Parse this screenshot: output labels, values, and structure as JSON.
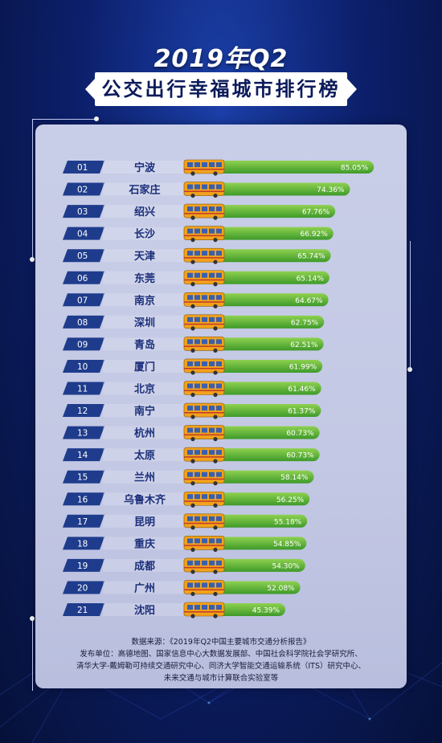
{
  "title": "2019年Q2",
  "subtitle": "公交出行幸福城市排行榜",
  "colors": {
    "rank_badge": "#1f3c8c",
    "bar_green_light": "#8fd14f",
    "bar_green_dark": "#3e9a2a",
    "bus_orange": "#f2a21b",
    "panel": "#c6cbe6"
  },
  "chart_data": {
    "type": "bar",
    "orientation": "horizontal",
    "ranks": [
      "01",
      "02",
      "03",
      "04",
      "05",
      "06",
      "07",
      "08",
      "09",
      "10",
      "11",
      "12",
      "13",
      "14",
      "15",
      "16",
      "17",
      "18",
      "19",
      "20",
      "21"
    ],
    "categories": [
      "宁波",
      "石家庄",
      "绍兴",
      "长沙",
      "天津",
      "东莞",
      "南京",
      "深圳",
      "青岛",
      "厦门",
      "北京",
      "南宁",
      "杭州",
      "太原",
      "兰州",
      "乌鲁木齐",
      "昆明",
      "重庆",
      "成都",
      "广州",
      "沈阳"
    ],
    "values": [
      85.05,
      74.36,
      67.76,
      66.92,
      65.74,
      65.14,
      64.67,
      62.75,
      62.51,
      61.99,
      61.46,
      61.37,
      60.73,
      60.73,
      58.14,
      56.25,
      55.18,
      54.85,
      54.3,
      52.08,
      45.39
    ],
    "labels": [
      "85.05%",
      "74.36%",
      "67.76%",
      "66.92%",
      "65.74%",
      "65.14%",
      "64.67%",
      "62.75%",
      "62.51%",
      "61.99%",
      "61.46%",
      "61.37%",
      "60.73%",
      "60.73%",
      "58.14%",
      "56.25%",
      "55.18%",
      "54.85%",
      "54.30%",
      "52.08%",
      "45.39%"
    ],
    "icon": "bus-icon"
  },
  "source": {
    "line1": "数据来源：《2019年Q2中国主要城市交通分析报告》",
    "line2": "发布单位：高德地图、国家信息中心大数据发展部、中国社会科学院社会学研究所、",
    "line3": "清华大学-戴姆勒可持续交通研究中心、同济大学智能交通运输系统（ITS）研究中心、",
    "line4": "未来交通与城市计算联合实验室等"
  }
}
